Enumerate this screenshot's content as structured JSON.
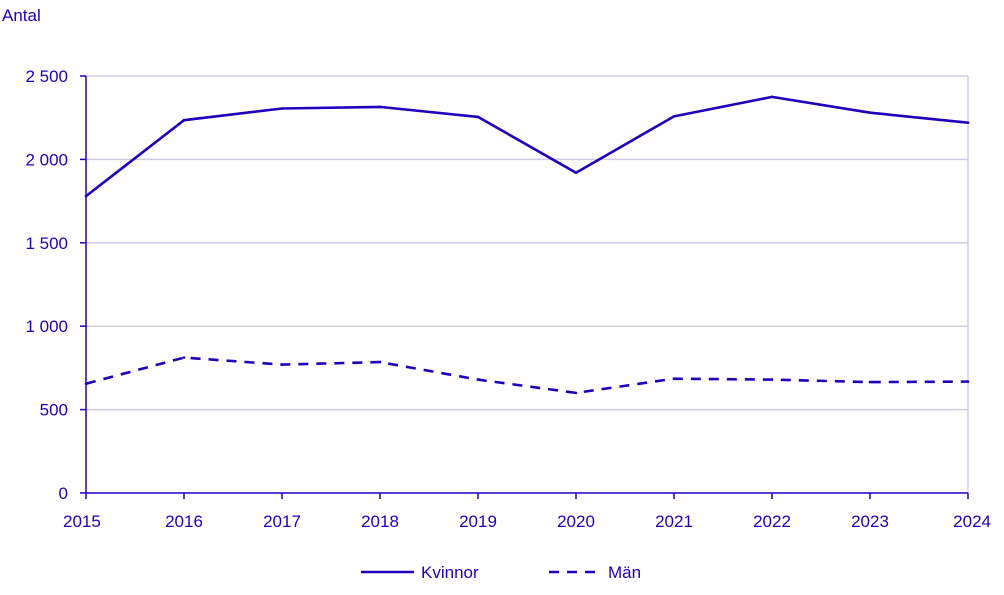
{
  "chart_data": {
    "type": "line",
    "title": "",
    "ylabel": "Antal",
    "xlabel": "",
    "x": [
      "2015",
      "2016",
      "2017",
      "2018",
      "2019",
      "2020",
      "2021",
      "2022",
      "2023",
      "2024"
    ],
    "ylim": [
      0,
      2500
    ],
    "yticks": [
      0,
      500,
      1000,
      1500,
      2000,
      2500
    ],
    "ytick_labels": [
      "0",
      "500",
      "1 000",
      "1 500",
      "2 000",
      "2 500"
    ],
    "grid": true,
    "legend_position": "bottom-center",
    "series": [
      {
        "name": "Kvinnor",
        "style": "solid",
        "color": "#1e00be",
        "values": [
          1780,
          2235,
          2305,
          2315,
          2255,
          1920,
          2258,
          2375,
          2280,
          2220
        ]
      },
      {
        "name": "Män",
        "style": "dashed",
        "color": "#1e00be",
        "values": [
          655,
          812,
          770,
          785,
          680,
          600,
          685,
          680,
          665,
          668
        ]
      }
    ]
  },
  "colors": {
    "text": "#1e00be",
    "grid": "#cfcde6",
    "axis": "#1e00be"
  }
}
